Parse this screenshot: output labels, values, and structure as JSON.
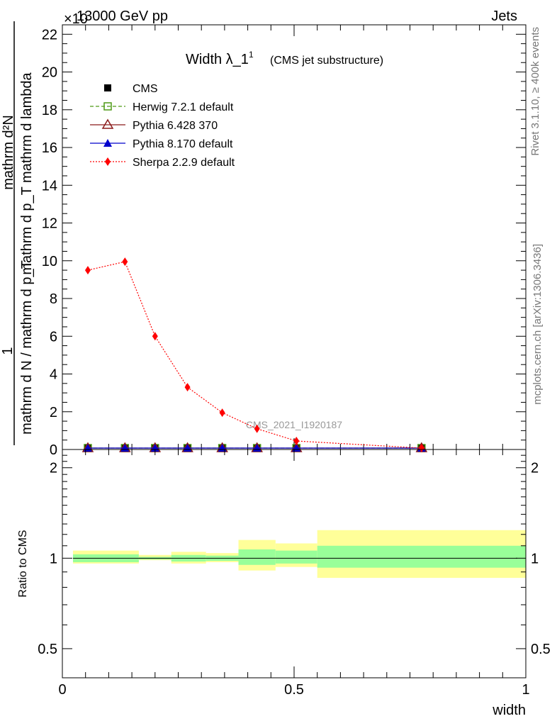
{
  "header": {
    "left": "13000 GeV pp",
    "right": "Jets",
    "exponent_label": "×10"
  },
  "side_text": {
    "rivet": "Rivet 3.1.10, ≥ 400k events",
    "mcplots": "mcplots.cern.ch [arXiv:1306.3436]"
  },
  "watermark": "CMS_2021_I1920187",
  "colors": {
    "cms": "#000000",
    "herwig": "#4f9a17",
    "pythia6": "#8b1a1a",
    "pythia8": "#0000cc",
    "sherpa": "#ff0000",
    "band_inner": "#99ff99",
    "band_outer": "#ffff99"
  },
  "chart_data": [
    {
      "type": "line",
      "title": "Width λ_1",
      "title_sup": "1",
      "title_note": "(CMS jet substructure)",
      "ylabel": "1 / mathrm d N / mathrm d p_T mathrm d p_T mathrm d lambda mathrm d^2N",
      "ylabel_numerator": "mathrm d²N",
      "ylabel_numerator_2": "mathrm d p_T mathrm d lambda",
      "ylabel_one": "1",
      "ylabel_denominator": "mathrm d N / mathrm d p_T",
      "xlim": [
        0,
        1
      ],
      "ylim": [
        0,
        22.5
      ],
      "ytick_labels": [
        "0",
        "2",
        "4",
        "6",
        "8",
        "10",
        "12",
        "14",
        "16",
        "18",
        "20",
        "22"
      ],
      "legend": [
        "CMS",
        "Herwig 7.2.1 default",
        "Pythia 6.428 370",
        "Pythia 8.170 default",
        "Sherpa 2.2.9 default"
      ],
      "legend_position": "top-left",
      "series": [
        {
          "name": "CMS",
          "x": [
            0.055,
            0.135,
            0.2,
            0.27,
            0.345,
            0.42,
            0.505,
            0.775
          ],
          "y": [
            0.03,
            0.03,
            0.03,
            0.03,
            0.03,
            0.03,
            0.03,
            0.03
          ]
        },
        {
          "name": "Herwig 7.2.1 default",
          "x": [
            0.055,
            0.135,
            0.2,
            0.27,
            0.345,
            0.42,
            0.505,
            0.775
          ],
          "y": [
            0.03,
            0.03,
            0.03,
            0.03,
            0.03,
            0.03,
            0.03,
            0.03
          ]
        },
        {
          "name": "Pythia 6.428 370",
          "x": [
            0.055,
            0.135,
            0.2,
            0.27,
            0.345,
            0.42,
            0.505,
            0.775
          ],
          "y": [
            0.03,
            0.03,
            0.03,
            0.03,
            0.03,
            0.03,
            0.03,
            0.03
          ]
        },
        {
          "name": "Pythia 8.170 default",
          "x": [
            0.055,
            0.135,
            0.2,
            0.27,
            0.345,
            0.42,
            0.505,
            0.775
          ],
          "y": [
            0.03,
            0.03,
            0.03,
            0.03,
            0.03,
            0.03,
            0.03,
            0.03
          ]
        },
        {
          "name": "Sherpa 2.2.9 default",
          "x": [
            0.055,
            0.135,
            0.2,
            0.27,
            0.345,
            0.42,
            0.505,
            0.775
          ],
          "y": [
            9.5,
            9.95,
            6.0,
            3.3,
            1.95,
            1.1,
            0.45,
            0.02
          ]
        }
      ]
    },
    {
      "type": "area",
      "ylabel": "Ratio to CMS",
      "xlabel": "width",
      "xlim": [
        0,
        1
      ],
      "ylim": [
        0.4,
        2.3
      ],
      "log_scale_y": true,
      "ytick_labels": [
        "0.5",
        "1",
        "2"
      ],
      "xtick_labels": [
        "0",
        "0.5",
        "1"
      ],
      "bin_edges": [
        0,
        0.165,
        0.235,
        0.31,
        0.38,
        0.46,
        0.55,
        1.0
      ],
      "band_inner": [
        [
          0.97,
          1.03
        ],
        [
          0.99,
          1.01
        ],
        [
          0.975,
          1.025
        ],
        [
          0.98,
          1.02
        ],
        [
          0.95,
          1.07
        ],
        [
          0.96,
          1.06
        ],
        [
          0.93,
          1.1
        ]
      ],
      "band_outer": [
        [
          0.96,
          1.06
        ],
        [
          0.985,
          1.025
        ],
        [
          0.96,
          1.05
        ],
        [
          0.97,
          1.04
        ],
        [
          0.91,
          1.15
        ],
        [
          0.935,
          1.12
        ],
        [
          0.86,
          1.24
        ]
      ],
      "reference_line": 1
    }
  ]
}
